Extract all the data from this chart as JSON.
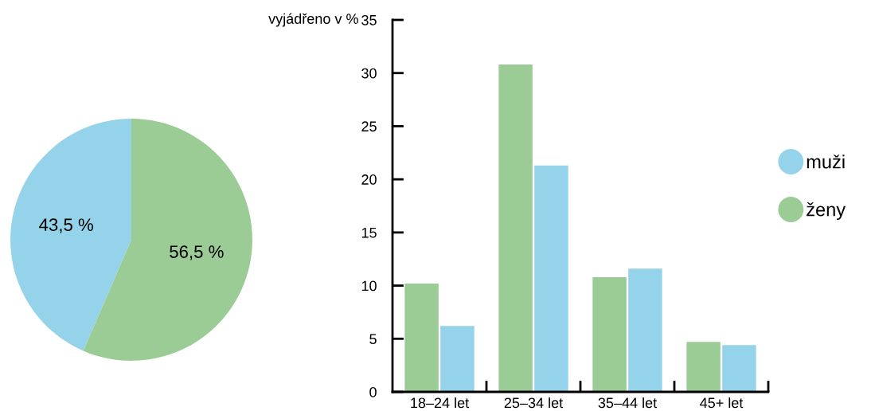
{
  "chart_data": [
    {
      "type": "pie",
      "categories": [
        null,
        null
      ],
      "values": [
        43.5,
        56.5
      ],
      "colors": [
        "#95d3ea",
        "#9ccc96"
      ],
      "value_labels": [
        "43,5 %",
        "56,5 %"
      ]
    },
    {
      "type": "bar",
      "ylabel": "vyjádřeno v %",
      "categories": [
        "18–24 let",
        "25–34 let",
        "35–44 let",
        "45+ let"
      ],
      "series": [
        {
          "name": "ženy",
          "color": "#9ccc96",
          "values": [
            10.2,
            30.8,
            10.8,
            4.7
          ]
        },
        {
          "name": "muži",
          "color": "#95d3ea",
          "values": [
            6.2,
            21.3,
            11.6,
            4.4
          ]
        }
      ],
      "ylim": [
        0,
        35
      ],
      "yticks": [
        0,
        5,
        10,
        15,
        20,
        25,
        30,
        35
      ],
      "legend": "right",
      "grid": false
    }
  ]
}
